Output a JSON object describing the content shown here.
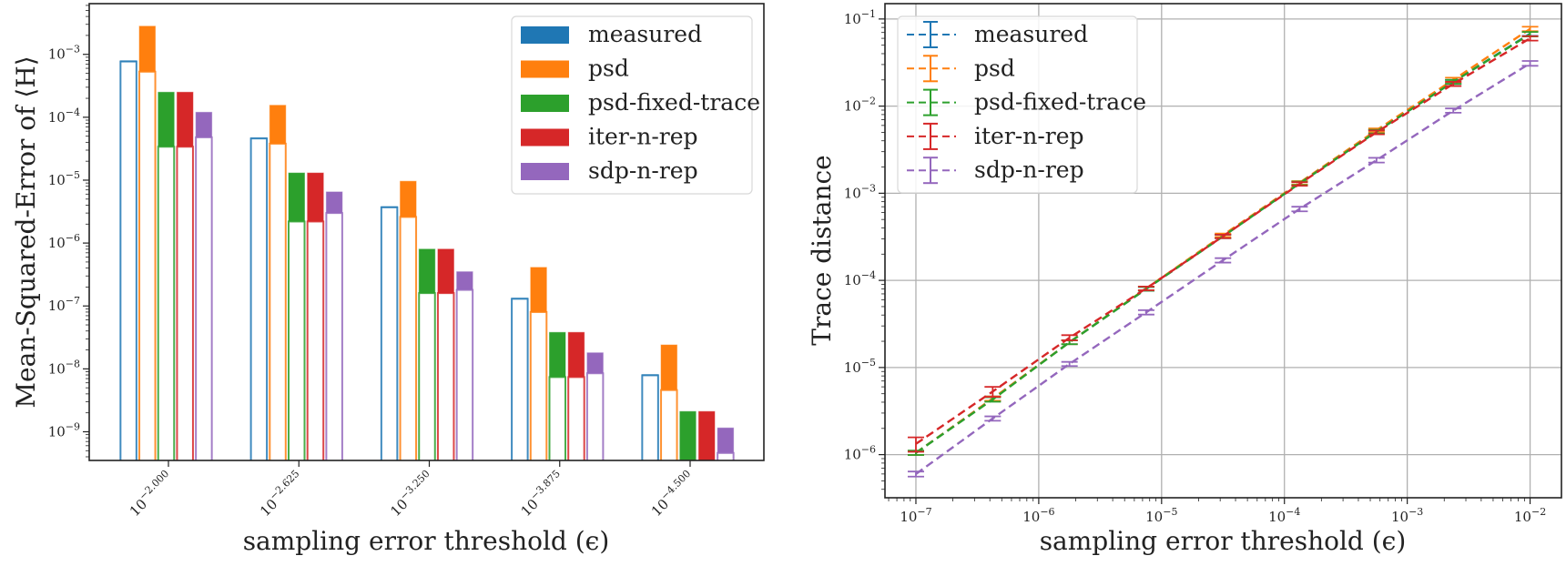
{
  "chart_data": [
    {
      "type": "bar",
      "ylabel": "Mean-Squared-Error of ⟨H⟩",
      "xlabel": "sampling error threshold (ϵ)",
      "yscale": "log",
      "ylim": [
        3.5e-10,
        0.0064
      ],
      "grid": false,
      "legend_position": "top-right",
      "categories": [
        "10^{-2.000}",
        "10^{-2.625}",
        "10^{-3.250}",
        "10^{-3.875}",
        "10^{-4.500}"
      ],
      "yticks": [
        "10^{-9}",
        "10^{-8}",
        "10^{-7}",
        "10^{-6}",
        "10^{-5}",
        "10^{-4}",
        "10^{-3}"
      ],
      "series": [
        {
          "name": "measured",
          "color": "#1f77b4",
          "values_filled": [
            0.00079,
            4.7e-05,
            3.8e-06,
            1.33e-07,
            8.1e-09
          ],
          "values_outline": [
            0.00077,
            4.6e-05,
            3.7e-06,
            1.3e-07,
            7.9e-09
          ]
        },
        {
          "name": "psd",
          "color": "#ff7f0e",
          "values_filled": [
            0.0028,
            0.000155,
            9.6e-06,
            4.1e-07,
            2.4e-08
          ],
          "values_outline": [
            0.00053,
            3.8e-05,
            2.6e-06,
            8e-08,
            4.6e-09
          ]
        },
        {
          "name": "psd-fixed-trace",
          "color": "#2ca02c",
          "values_filled": [
            0.00025,
            1.3e-05,
            8e-07,
            3.8e-08,
            2.1e-09
          ],
          "values_outline": [
            3.4e-05,
            2.2e-06,
            1.6e-07,
            7.4e-09,
            null
          ]
        },
        {
          "name": "iter-n-rep",
          "color": "#d62728",
          "values_filled": [
            0.00025,
            1.3e-05,
            8e-07,
            3.8e-08,
            2.1e-09
          ],
          "values_outline": [
            3.4e-05,
            2.2e-06,
            1.6e-07,
            7.4e-09,
            null
          ]
        },
        {
          "name": "sdp-n-rep",
          "color": "#9467bd",
          "values_filled": [
            0.00012,
            6.5e-06,
            3.5e-07,
            1.8e-08,
            1.15e-09
          ],
          "values_outline": [
            4.8e-05,
            3e-06,
            1.8e-07,
            8.5e-09,
            4.6e-10
          ]
        }
      ]
    },
    {
      "type": "line",
      "ylabel": "Trace distance",
      "xlabel": "sampling error threshold (ϵ)",
      "xscale": "log",
      "yscale": "log",
      "xlim": [
        5.6e-08,
        0.018
      ],
      "ylim": [
        3.2e-07,
        0.15
      ],
      "grid": true,
      "legend_position": "top-left",
      "line_style": "dashed",
      "xticks": [
        "10^{-7}",
        "10^{-6}",
        "10^{-5}",
        "10^{-4}",
        "10^{-3}",
        "10^{-2}"
      ],
      "yticks": [
        "10^{-6}",
        "10^{-5}",
        "10^{-4}",
        "10^{-3}",
        "10^{-2}",
        "10^{-1}"
      ],
      "x": [
        1e-07,
        4.22e-07,
        1.78e-06,
        7.5e-06,
        3.16e-05,
        0.000133,
        0.000562,
        0.00237,
        0.01
      ],
      "series": [
        {
          "name": "measured",
          "color": "#1f77b4",
          "values": [
            1.05e-06,
            4.4e-06,
            1.95e-05,
            8e-05,
            0.00032,
            0.0013,
            0.0051,
            0.019,
            0.068
          ],
          "yerr": [
            6e-08,
            2.5e-07,
            1e-06,
            4e-06,
            1.5e-05,
            6e-05,
            0.00025,
            0.001,
            0.004
          ]
        },
        {
          "name": "psd",
          "color": "#ff7f0e",
          "values": [
            1.05e-06,
            4.4e-06,
            1.95e-05,
            8.1e-05,
            0.00033,
            0.00132,
            0.0053,
            0.02,
            0.077
          ],
          "yerr": [
            6e-08,
            2.5e-07,
            1e-06,
            4e-06,
            1.5e-05,
            6e-05,
            0.00025,
            0.0012,
            0.0045
          ]
        },
        {
          "name": "psd-fixed-trace",
          "color": "#2ca02c",
          "values": [
            1.05e-06,
            4.3e-06,
            1.95e-05,
            8e-05,
            0.00032,
            0.0013,
            0.0051,
            0.019,
            0.067
          ],
          "yerr": [
            6e-08,
            2.5e-07,
            1e-06,
            4e-06,
            1.5e-05,
            6e-05,
            0.00025,
            0.001,
            0.004
          ]
        },
        {
          "name": "iter-n-rep",
          "color": "#d62728",
          "values": [
            1.33e-06,
            5.3e-06,
            2.2e-05,
            8.1e-05,
            0.00032,
            0.00128,
            0.005,
            0.018,
            0.06
          ],
          "yerr": [
            2.5e-07,
            7e-07,
            1.5e-06,
            4e-06,
            1.5e-05,
            6e-05,
            0.00025,
            0.001,
            0.0035
          ]
        },
        {
          "name": "sdp-n-rep",
          "color": "#9467bd",
          "values": [
            6e-07,
            2.6e-06,
            1.1e-05,
            4.3e-05,
            0.00017,
            0.00066,
            0.0024,
            0.0089,
            0.031
          ],
          "yerr": [
            4e-08,
            1.5e-07,
            6e-07,
            2.5e-06,
            1e-05,
            4e-05,
            0.00015,
            0.0005,
            0.002
          ]
        }
      ]
    }
  ]
}
